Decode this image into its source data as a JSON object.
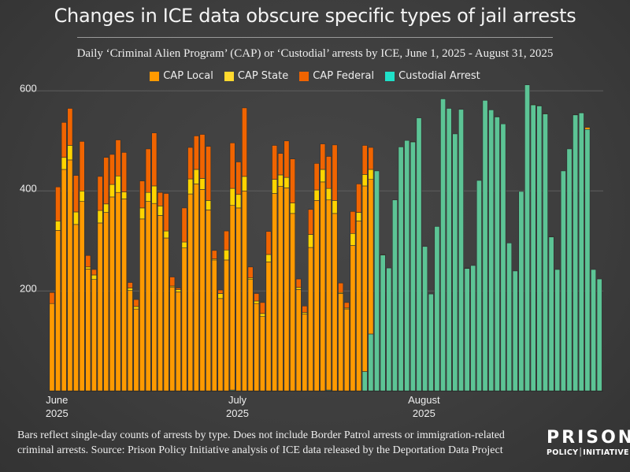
{
  "title": "Changes in ICE data obscure specific types of jail arrests",
  "subtitle": "Daily ‘Criminal Alien Program’ (CAP) or ‘Custodial’ arrests by ICE, June 1, 2025 - August 31, 2025",
  "footer": {
    "line1": "Bars reflect single-day counts of arrests by type. Does not include Border Patrol arrests or immigration-related",
    "line2": "criminal arrests. Source: Prison Policy Initiative analysis of ICE data released by the Deportation Data Project"
  },
  "logo": {
    "top": "PRISON",
    "bottom": "POLICY│INITIATIVE"
  },
  "chart_data": {
    "type": "bar",
    "stacked": true,
    "title": "Changes in ICE data obscure specific types of jail arrests",
    "subtitle": "Daily ‘Criminal Alien Program’ (CAP) or ‘Custodial’ arrests by ICE, June 1, 2025 - August 31, 2025",
    "x_start": "2025-06-01",
    "x_end": "2025-08-31",
    "x_ticks": [
      {
        "month": "June",
        "year": "2025",
        "day_index": 0
      },
      {
        "month": "July",
        "year": "2025",
        "day_index": 30
      },
      {
        "month": "August",
        "year": "2025",
        "day_index": 61
      }
    ],
    "y_ticks": [
      "200",
      "400",
      "600"
    ],
    "ylim": [
      0,
      620
    ],
    "grid": true,
    "legend_position": "top",
    "series": [
      {
        "name": "CAP Local",
        "color": "#ff9a00",
        "legend_color": "#ff9a00",
        "values": [
          175,
          321,
          443,
          462,
          333,
          379,
          244,
          223,
          336,
          357,
          388,
          397,
          384,
          201,
          164,
          344,
          379,
          375,
          351,
          306,
          208,
          198,
          286,
          394,
          414,
          403,
          362,
          262,
          185,
          262,
          369,
          366,
          400,
          223,
          175,
          149,
          258,
          395,
          409,
          406,
          355,
          203,
          154,
          287,
          381,
          418,
          380,
          355,
          195,
          164,
          291,
          340,
          371,
          309,
          0,
          0,
          0,
          0,
          0,
          0,
          0,
          0,
          0,
          0,
          0,
          0,
          0,
          0,
          0,
          0,
          0,
          0,
          0,
          0,
          1,
          0,
          0,
          0,
          0,
          0,
          1,
          0,
          1,
          0,
          0,
          0,
          0,
          1,
          0,
          4,
          0,
          0
        ]
      },
      {
        "name": "CAP State",
        "color": "#ffd400",
        "legend_color": "#ffd92e",
        "values": [
          0,
          19,
          24,
          29,
          25,
          21,
          4,
          9,
          25,
          17,
          25,
          33,
          14,
          5,
          5,
          22,
          18,
          35,
          19,
          14,
          2,
          5,
          12,
          30,
          29,
          22,
          19,
          2,
          10,
          20,
          34,
          27,
          29,
          3,
          5,
          6,
          15,
          28,
          23,
          21,
          21,
          4,
          3,
          26,
          21,
          25,
          23,
          26,
          2,
          2,
          24,
          17,
          23,
          20,
          0,
          0,
          0,
          0,
          0,
          0,
          0,
          0,
          0,
          0,
          0,
          0,
          0,
          0,
          0,
          0,
          0,
          0,
          0,
          0,
          0,
          0,
          0,
          0,
          0,
          0,
          0,
          1,
          0,
          0,
          0,
          0,
          0,
          0,
          1,
          0,
          0,
          0
        ]
      },
      {
        "name": "CAP Federal",
        "color": "#f06400",
        "legend_color": "#f06400",
        "values": [
          22,
          68,
          70,
          74,
          73,
          99,
          23,
          11,
          68,
          93,
          60,
          72,
          79,
          11,
          14,
          54,
          87,
          106,
          27,
          75,
          18,
          3,
          68,
          63,
          67,
          88,
          108,
          17,
          7,
          38,
          91,
          65,
          137,
          22,
          15,
          22,
          46,
          68,
          43,
          73,
          88,
          17,
          13,
          50,
          53,
          51,
          64,
          111,
          19,
          11,
          44,
          57,
          58,
          44,
          0,
          1,
          0,
          0,
          0,
          0,
          1,
          0,
          0,
          0,
          0,
          0,
          0,
          0,
          0,
          1,
          0,
          0,
          0,
          0,
          0,
          0,
          0,
          0,
          0,
          0,
          0,
          0,
          0,
          1,
          0,
          0,
          0,
          0,
          0,
          0,
          0,
          0
        ]
      },
      {
        "name": "Custodial Arrest",
        "color": "#5cc495",
        "legend_color": "#1fe0c8",
        "values": [
          0,
          0,
          0,
          0,
          0,
          0,
          0,
          0,
          0,
          0,
          0,
          0,
          0,
          0,
          0,
          0,
          0,
          0,
          0,
          0,
          0,
          0,
          0,
          0,
          0,
          0,
          0,
          0,
          0,
          0,
          2,
          0,
          0,
          0,
          0,
          0,
          0,
          0,
          0,
          0,
          0,
          0,
          0,
          0,
          0,
          0,
          2,
          0,
          0,
          0,
          0,
          0,
          39,
          114,
          440,
          272,
          246,
          382,
          488,
          501,
          498,
          546,
          289,
          194,
          329,
          584,
          565,
          514,
          563,
          245,
          251,
          421,
          581,
          562,
          548,
          534,
          296,
          240,
          399,
          612,
          572,
          570,
          554,
          308,
          243,
          440,
          484,
          552,
          556,
          523,
          243,
          224
        ]
      }
    ]
  }
}
